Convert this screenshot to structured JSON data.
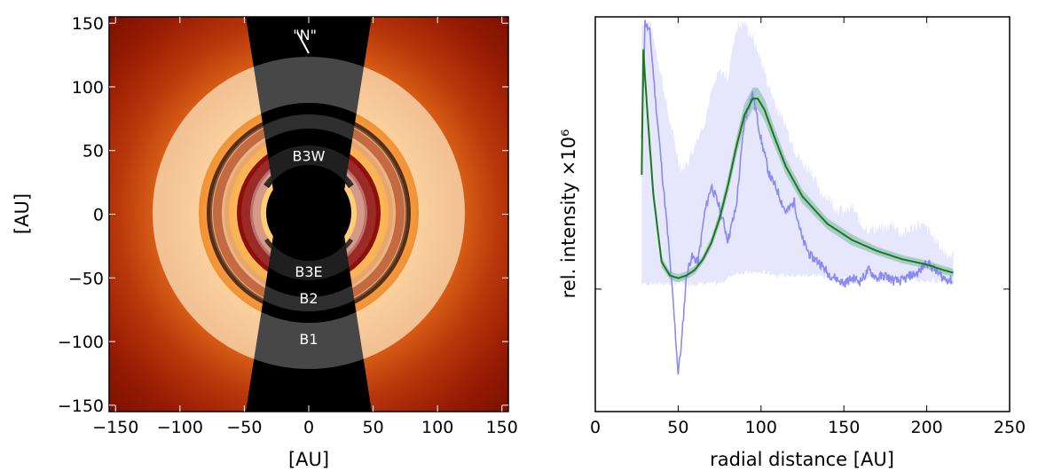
{
  "chart_data": [
    {
      "type": "image",
      "xlabel": "[AU]",
      "ylabel": "[AU]",
      "xlim": [
        -155,
        155
      ],
      "ylim": [
        -155,
        155
      ],
      "xticks": [
        -150,
        -100,
        -50,
        0,
        50,
        100,
        150
      ],
      "yticks": [
        -150,
        -100,
        -50,
        0,
        50,
        100,
        150
      ],
      "xtick_labels": [
        "−150",
        "−100",
        "−50",
        "0",
        "50",
        "100",
        "150"
      ],
      "ytick_labels": [
        "−150",
        "−100",
        "−50",
        "0",
        "50",
        "100",
        "150"
      ],
      "annotations": [
        {
          "text": "\"N\"",
          "x": -3,
          "y": 141
        },
        {
          "text": "B3W",
          "x": 0,
          "y": 46
        },
        {
          "text": "B3E",
          "x": 0,
          "y": -45
        },
        {
          "text": "B2",
          "x": 0,
          "y": -66
        },
        {
          "text": "B1",
          "x": 0,
          "y": -98
        }
      ],
      "rings_au": [
        {
          "name": "B1",
          "r_inner": 80,
          "r_outer": 117
        },
        {
          "name": "B2",
          "r_inner": 69,
          "r_outer": 80
        },
        {
          "name": "B3",
          "r_inner": 40,
          "r_outer": 55
        }
      ],
      "colors": {
        "background_outer": "#8b1200",
        "background_mid": "#e8741a",
        "bright": "#fff4c8",
        "mask": "#000000"
      }
    },
    {
      "type": "line",
      "xlabel": "radial distance [AU]",
      "ylabel": "rel. intensity ×10⁶",
      "xlim": [
        0,
        250
      ],
      "xticks": [
        0,
        50,
        100,
        150,
        200,
        250
      ],
      "ylim": [
        -0.45,
        1.0
      ],
      "yticks": [
        0
      ],
      "ytick_labels": [
        ""
      ],
      "series": [
        {
          "color": "#8080f0",
          "style": "noisy",
          "x": [
            28,
            30,
            33,
            36,
            40,
            44,
            47,
            50,
            52,
            55,
            58,
            62,
            66,
            70,
            75,
            80,
            85,
            90,
            95,
            100,
            105,
            110,
            115,
            120,
            125,
            130,
            135,
            140,
            145,
            150,
            155,
            160,
            165,
            170,
            175,
            180,
            185,
            190,
            195,
            200,
            205,
            210,
            216
          ],
          "y": [
            0.55,
            0.98,
            0.94,
            0.72,
            0.45,
            0.18,
            -0.05,
            -0.31,
            -0.2,
            0.05,
            0.12,
            0.1,
            0.28,
            0.38,
            0.3,
            0.18,
            0.3,
            0.62,
            0.72,
            0.55,
            0.42,
            0.36,
            0.28,
            0.32,
            0.18,
            0.12,
            0.1,
            0.06,
            0.04,
            0.02,
            0.04,
            0.03,
            0.07,
            0.04,
            0.05,
            0.03,
            0.03,
            0.05,
            0.06,
            0.1,
            0.07,
            0.04,
            0.03
          ],
          "band_lower": [
            0.02,
            0.02,
            0.02,
            0.02,
            0.02,
            0.02,
            0.02,
            0.02,
            0.02,
            0.02,
            0.02,
            0.02,
            0.02,
            0.02,
            0.02,
            0.04,
            0.06,
            0.06,
            0.06,
            0.06,
            0.06,
            0.05,
            0.05,
            0.05,
            0.05,
            0.05,
            0.05,
            0.04,
            0.04,
            0.04,
            0.04,
            0.04,
            0.04,
            0.04,
            0.03,
            0.03,
            0.03,
            0.03,
            0.03,
            0.03,
            0.03,
            0.03,
            0.03
          ],
          "band_upper": [
            0.98,
            0.98,
            0.98,
            0.9,
            0.78,
            0.64,
            0.56,
            0.48,
            0.44,
            0.46,
            0.5,
            0.56,
            0.62,
            0.72,
            0.8,
            0.78,
            0.96,
            0.98,
            0.92,
            0.84,
            0.74,
            0.66,
            0.6,
            0.52,
            0.46,
            0.44,
            0.36,
            0.34,
            0.3,
            0.28,
            0.3,
            0.24,
            0.22,
            0.22,
            0.22,
            0.24,
            0.2,
            0.22,
            0.24,
            0.22,
            0.18,
            0.14,
            0.12
          ]
        },
        {
          "color": "#1a7a1a",
          "style": "smooth",
          "x": [
            28,
            29,
            30,
            32,
            35,
            40,
            45,
            50,
            55,
            60,
            65,
            70,
            75,
            80,
            85,
            90,
            95,
            98,
            102,
            108,
            115,
            125,
            140,
            155,
            170,
            185,
            200,
            210,
            216
          ],
          "y": [
            0.42,
            0.88,
            0.78,
            0.6,
            0.35,
            0.1,
            0.05,
            0.04,
            0.05,
            0.07,
            0.11,
            0.17,
            0.26,
            0.38,
            0.52,
            0.64,
            0.7,
            0.7,
            0.66,
            0.56,
            0.45,
            0.34,
            0.24,
            0.18,
            0.14,
            0.11,
            0.09,
            0.07,
            0.06
          ],
          "band_halfwidth": [
            0.02,
            0.02,
            0.02,
            0.02,
            0.02,
            0.02,
            0.015,
            0.015,
            0.015,
            0.015,
            0.015,
            0.02,
            0.025,
            0.03,
            0.035,
            0.04,
            0.04,
            0.04,
            0.04,
            0.035,
            0.03,
            0.025,
            0.02,
            0.02,
            0.015,
            0.015,
            0.015,
            0.015,
            0.015
          ]
        }
      ]
    }
  ]
}
